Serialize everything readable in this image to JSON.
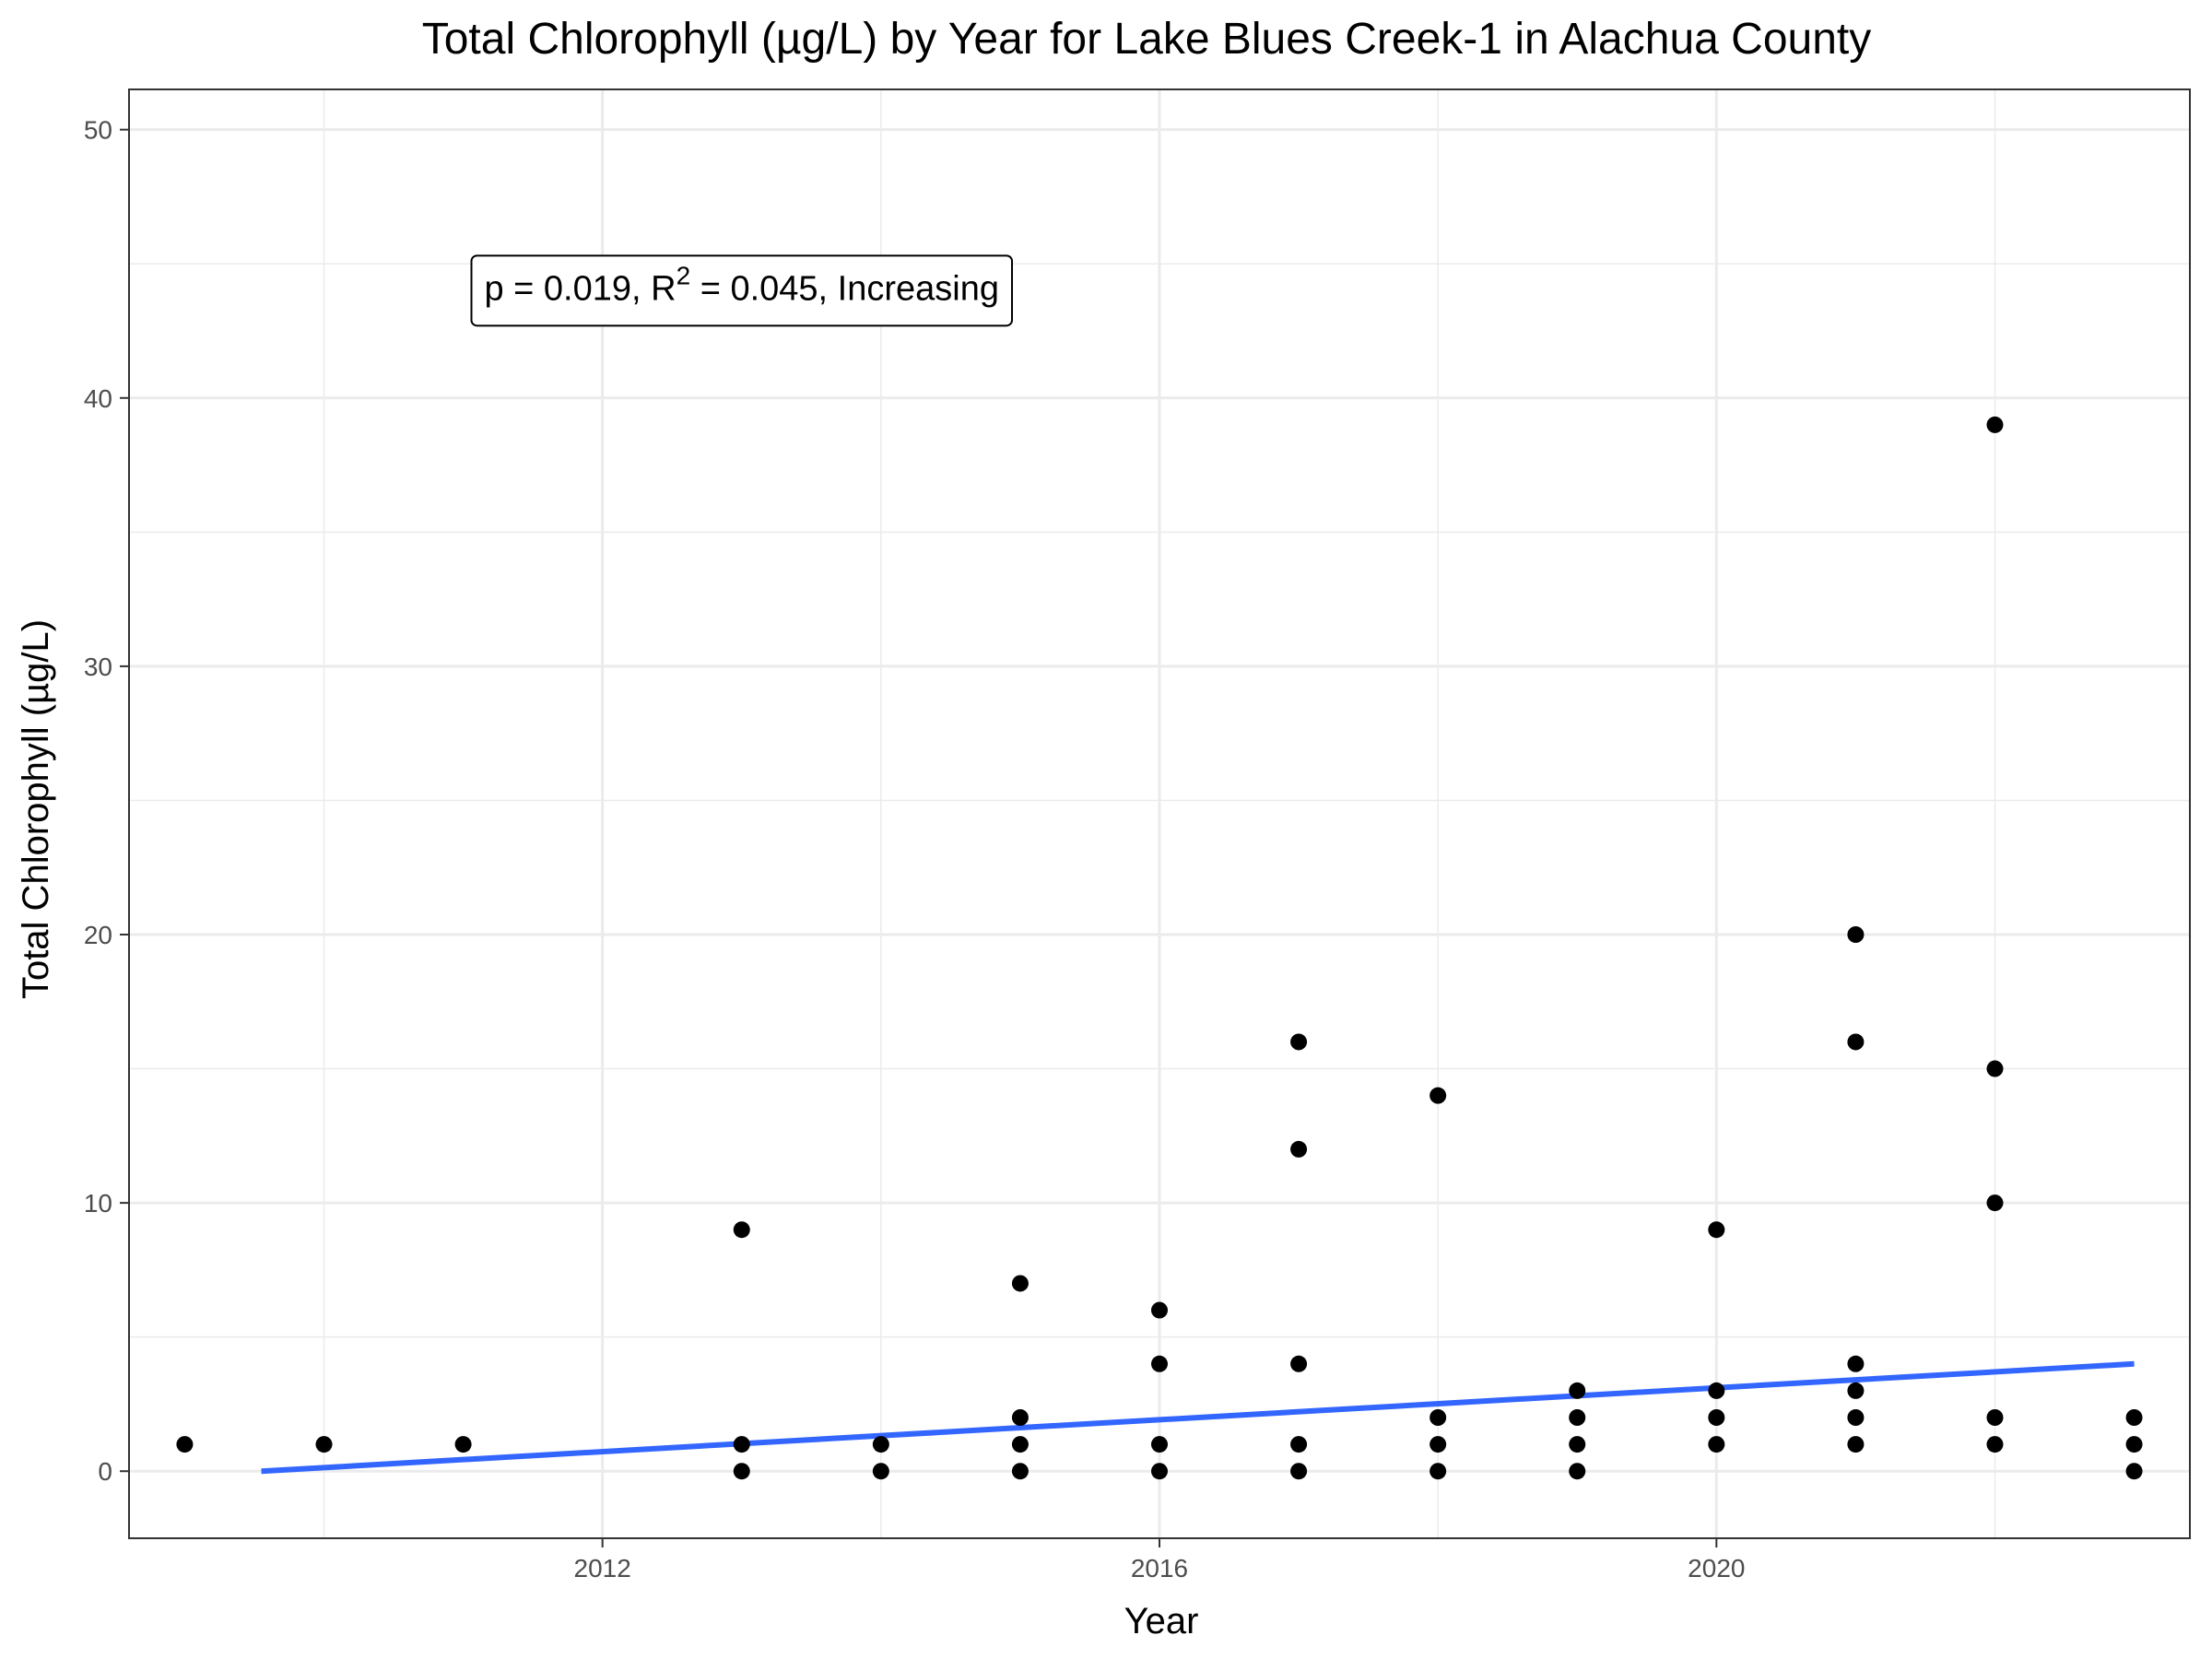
{
  "chart_data": {
    "type": "scatter",
    "title": "Total Chlorophyll (µg/L) by Year for Lake Blues Creek-1 in Alachua County",
    "xlabel": "Year",
    "ylabel": "Total Chlorophyll (µg/L)",
    "xlim": [
      2008.6,
      2023.4
    ],
    "ylim": [
      -2.5,
      51.5
    ],
    "x_ticks": [
      2012,
      2016,
      2020
    ],
    "y_ticks": [
      0,
      10,
      20,
      30,
      40,
      50
    ],
    "grid": true,
    "legend": "none",
    "annotation": {
      "p": "p = 0.019, R",
      "sup": "2",
      "rest": " = 0.045, Increasing",
      "x": 2013.0,
      "y": 44
    },
    "series": [
      {
        "color": "#000000",
        "points": [
          [
            2009,
            1
          ],
          [
            2010,
            1
          ],
          [
            2011,
            1
          ],
          [
            2013,
            9
          ],
          [
            2013,
            1
          ],
          [
            2013,
            0
          ],
          [
            2014,
            1
          ],
          [
            2014,
            0
          ],
          [
            2015,
            7
          ],
          [
            2015,
            2
          ],
          [
            2015,
            1
          ],
          [
            2015,
            0
          ],
          [
            2016,
            6
          ],
          [
            2016,
            4
          ],
          [
            2016,
            1
          ],
          [
            2016,
            0
          ],
          [
            2017,
            16
          ],
          [
            2017,
            12
          ],
          [
            2017,
            4
          ],
          [
            2017,
            1
          ],
          [
            2017,
            0
          ],
          [
            2018,
            14
          ],
          [
            2018,
            2
          ],
          [
            2018,
            1
          ],
          [
            2018,
            0
          ],
          [
            2019,
            3
          ],
          [
            2019,
            2
          ],
          [
            2019,
            1
          ],
          [
            2019,
            0
          ],
          [
            2020,
            9
          ],
          [
            2020,
            3
          ],
          [
            2020,
            2
          ],
          [
            2020,
            1
          ],
          [
            2021,
            20
          ],
          [
            2021,
            16
          ],
          [
            2021,
            4
          ],
          [
            2021,
            3
          ],
          [
            2021,
            2
          ],
          [
            2021,
            1
          ],
          [
            2022,
            39
          ],
          [
            2022,
            15
          ],
          [
            2022,
            10
          ],
          [
            2022,
            2
          ],
          [
            2022,
            1
          ],
          [
            2023,
            2
          ],
          [
            2023,
            1
          ],
          [
            2023,
            0
          ]
        ]
      }
    ],
    "trend_line": {
      "color": "#3366FF",
      "points": [
        [
          2009.55,
          0.0
        ],
        [
          2023.0,
          4.0
        ]
      ]
    }
  }
}
